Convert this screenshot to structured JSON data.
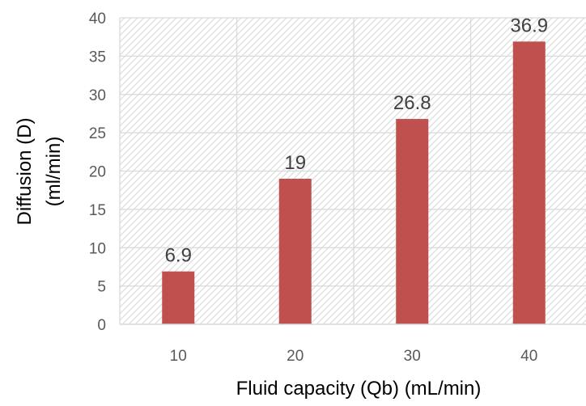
{
  "chart_data": {
    "type": "bar",
    "categories": [
      "10",
      "20",
      "30",
      "40"
    ],
    "values": [
      6.9,
      19,
      26.8,
      36.9
    ],
    "data_labels": [
      "6.9",
      "19",
      "26.8",
      "36.9"
    ],
    "title": "",
    "xlabel": "Fluid capacity (Qb) (mL/min)",
    "ylabel_lines": [
      "Diffusion (D)",
      "(ml/min)"
    ],
    "ylim": [
      0,
      40
    ],
    "yticks": [
      0,
      5,
      10,
      15,
      20,
      25,
      30,
      35,
      40
    ],
    "ytick_labels": [
      "0",
      "5",
      "10",
      "15",
      "20",
      "25",
      "30",
      "35",
      "40"
    ],
    "grid": true,
    "plot_background": "diagonal-hatch",
    "bar_color": "#c0504d",
    "label_color": "#404040",
    "tick_color": "#595959",
    "grid_color": "#d9d9d9",
    "hatch_color": "#dcdcdc"
  }
}
